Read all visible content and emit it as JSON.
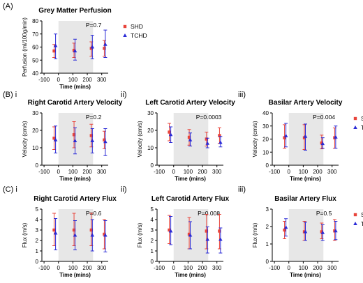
{
  "colors": {
    "shd": "#e8453c",
    "tchd": "#2a2ad6",
    "shade": "#e7e7e7",
    "axis": "#000000"
  },
  "section_labels": {
    "a": "(A)",
    "b": "(B) i",
    "b2": "ii)",
    "b3": "iii)",
    "c": "(C) i",
    "c2": "ii)",
    "c3": "iii)"
  },
  "chart_data": [
    {
      "id": "a",
      "type": "scatter",
      "title": "Grey Matter Perfusion",
      "pvalue": "P=0.7",
      "xlabel": "Time (mins)",
      "ylabel": "Perfusion (ml/100g/min)",
      "xlim": [
        -115,
        345
      ],
      "xticks": [
        -100,
        0,
        100,
        200,
        300
      ],
      "xtick_labels": [
        "-100",
        "0",
        "100",
        "200",
        "300"
      ],
      "ylim": [
        40,
        80
      ],
      "yticks": [
        40,
        50,
        60,
        70,
        80
      ],
      "ytick_labels": [
        "40",
        "50",
        "60",
        "70",
        "80"
      ],
      "shade": [
        0,
        240
      ],
      "series": [
        {
          "name": "SHD",
          "x": [
            -30,
            108,
            228,
            318
          ],
          "mean": [
            57,
            57.5,
            59,
            59
          ],
          "lo": [
            52,
            52,
            53,
            53
          ],
          "hi": [
            62,
            63,
            64,
            65
          ]
        },
        {
          "name": "TCHD",
          "x": [
            -20,
            115,
            235,
            325
          ],
          "mean": [
            61,
            57,
            60,
            62
          ],
          "lo": [
            51,
            50,
            51,
            52
          ],
          "hi": [
            70,
            66,
            69,
            73
          ]
        }
      ],
      "legend": [
        "SHD",
        "TCHD"
      ]
    },
    {
      "id": "bi",
      "type": "scatter",
      "title": "Right Carotid Artery Velocity",
      "pvalue": "P=0.2",
      "xlabel": "Time (mins)",
      "ylabel": "Velocity (cm/s)",
      "xlim": [
        -115,
        345
      ],
      "xticks": [
        -100,
        0,
        100,
        200,
        300
      ],
      "xtick_labels": [
        "-100",
        "0",
        "100",
        "200",
        "300"
      ],
      "ylim": [
        0,
        30
      ],
      "yticks": [
        0,
        10,
        20,
        30
      ],
      "ytick_labels": [
        "0",
        "10",
        "20",
        "30"
      ],
      "shade": [
        0,
        240
      ],
      "series": [
        {
          "name": "SHD",
          "x": [
            -30,
            108,
            228,
            318
          ],
          "mean": [
            15.5,
            17.5,
            17,
            14.5
          ],
          "lo": [
            9,
            10,
            10.5,
            9.5
          ],
          "hi": [
            22,
            25,
            23.5,
            19.5
          ]
        },
        {
          "name": "TCHD",
          "x": [
            -20,
            115,
            235,
            325
          ],
          "mean": [
            14.5,
            14,
            14,
            13.5
          ],
          "lo": [
            7,
            6.5,
            7,
            5.5
          ],
          "hi": [
            22.5,
            21.5,
            21,
            21
          ]
        }
      ],
      "legend": []
    },
    {
      "id": "bii",
      "type": "scatter",
      "title": "Left Carotid Artery Velocity",
      "pvalue": "P=0.0003",
      "xlabel": "Time (mins)",
      "ylabel": "Velocity (cm/s)",
      "xlim": [
        -115,
        345
      ],
      "xticks": [
        -100,
        0,
        100,
        200,
        300
      ],
      "xtick_labels": [
        "-100",
        "0",
        "100",
        "200",
        "300"
      ],
      "ylim": [
        0,
        30
      ],
      "yticks": [
        0,
        10,
        20,
        30
      ],
      "ytick_labels": [
        "0",
        "10",
        "20",
        "30"
      ],
      "shade": [
        0,
        240
      ],
      "series": [
        {
          "name": "SHD",
          "x": [
            -30,
            108,
            228,
            318
          ],
          "mean": [
            19,
            16,
            15,
            17
          ],
          "lo": [
            14,
            11.5,
            11,
            12.5
          ],
          "hi": [
            24,
            20.5,
            19,
            21.5
          ]
        },
        {
          "name": "TCHD",
          "x": [
            -20,
            115,
            235,
            325
          ],
          "mean": [
            17.5,
            14.5,
            12.5,
            13
          ],
          "lo": [
            13,
            11,
            10,
            10.5
          ],
          "hi": [
            22,
            18.5,
            15.5,
            16.5
          ]
        }
      ],
      "legend": []
    },
    {
      "id": "biii",
      "type": "scatter",
      "title": "Basilar Artery Velocity",
      "pvalue": "P=0.004",
      "xlabel": "Time (mins)",
      "ylabel": "Velocity (cm/s)",
      "xlim": [
        -115,
        345
      ],
      "xticks": [
        -100,
        0,
        100,
        200,
        300
      ],
      "xtick_labels": [
        "-100",
        "0",
        "100",
        "200",
        "300"
      ],
      "ylim": [
        0,
        40
      ],
      "yticks": [
        0,
        10,
        20,
        30,
        40
      ],
      "ytick_labels": [
        "0",
        "10",
        "20",
        "30",
        "40"
      ],
      "shade": [
        0,
        240
      ],
      "series": [
        {
          "name": "SHD",
          "x": [
            -30,
            108,
            228,
            318
          ],
          "mean": [
            21,
            21,
            17,
            21
          ],
          "lo": [
            13,
            12,
            12.5,
            13
          ],
          "hi": [
            31,
            31,
            23,
            28.5
          ]
        },
        {
          "name": "TCHD",
          "x": [
            -20,
            115,
            235,
            325
          ],
          "mean": [
            22.5,
            22,
            16.5,
            21.5
          ],
          "lo": [
            14,
            11.5,
            13,
            13
          ],
          "hi": [
            32,
            31.5,
            21,
            30
          ]
        }
      ],
      "legend": [
        "SHD",
        "TCHD"
      ]
    },
    {
      "id": "ci",
      "type": "scatter",
      "title": "Right Carotid Artery Flux",
      "pvalue": "P=0.6",
      "xlabel": "Time (mins)",
      "ylabel": "Flux (m/s)",
      "xlim": [
        -115,
        345
      ],
      "xticks": [
        -100,
        0,
        100,
        200,
        300
      ],
      "xtick_labels": [
        "-100",
        "0",
        "100",
        "200",
        "300"
      ],
      "ylim": [
        0,
        5
      ],
      "yticks": [
        0,
        1,
        2,
        3,
        4,
        5
      ],
      "ytick_labels": [
        "0",
        "1",
        "2",
        "3",
        "4",
        "5"
      ],
      "shade": [
        0,
        240
      ],
      "series": [
        {
          "name": "SHD",
          "x": [
            -30,
            108,
            228,
            318
          ],
          "mean": [
            3,
            3,
            3,
            2.6
          ],
          "lo": [
            1.5,
            1.5,
            1.5,
            1.2
          ],
          "hi": [
            4.6,
            4.6,
            4.6,
            4.0
          ]
        },
        {
          "name": "TCHD",
          "x": [
            -20,
            115,
            235,
            325
          ],
          "mean": [
            2.7,
            2.5,
            2.5,
            2.5
          ],
          "lo": [
            1.1,
            1.1,
            1.0,
            0.9
          ],
          "hi": [
            4.1,
            3.9,
            4.0,
            3.9
          ]
        }
      ],
      "legend": []
    },
    {
      "id": "cii",
      "type": "scatter",
      "title": "Left Carotid Artery Flux",
      "pvalue": "P=0.008",
      "xlabel": "Time (mins)",
      "ylabel": "Flux (m/s)",
      "xlim": [
        -115,
        345
      ],
      "xticks": [
        -100,
        0,
        100,
        200,
        300
      ],
      "xtick_labels": [
        "-100",
        "0",
        "100",
        "200",
        "300"
      ],
      "ylim": [
        0,
        5
      ],
      "yticks": [
        0,
        1,
        2,
        3,
        4,
        5
      ],
      "ytick_labels": [
        "0",
        "1",
        "2",
        "3",
        "4",
        "5"
      ],
      "shade": [
        0,
        240
      ],
      "series": [
        {
          "name": "SHD",
          "x": [
            -30,
            108,
            228,
            318
          ],
          "mean": [
            3.0,
            2.6,
            2.9,
            2.9
          ],
          "lo": [
            1.7,
            1.2,
            1.2,
            1.2
          ],
          "hi": [
            4.4,
            4.2,
            4.5,
            4.5
          ]
        },
        {
          "name": "TCHD",
          "x": [
            -20,
            115,
            235,
            325
          ],
          "mean": [
            2.9,
            2.5,
            2.1,
            2.1
          ],
          "lo": [
            1.6,
            1.2,
            0.8,
            0.8
          ],
          "hi": [
            4.3,
            3.8,
            3.3,
            3.2
          ]
        }
      ],
      "legend": []
    },
    {
      "id": "ciii",
      "type": "scatter",
      "title": "Basilar Artery Flux",
      "pvalue": "P=0.5",
      "xlabel": "Time (mins)",
      "ylabel": "Flux (m/s)",
      "xlim": [
        -115,
        345
      ],
      "xticks": [
        -100,
        0,
        100,
        200,
        300
      ],
      "xtick_labels": [
        "-100",
        "0",
        "100",
        "200",
        "300"
      ],
      "ylim": [
        0,
        3
      ],
      "yticks": [
        0,
        1,
        2,
        3
      ],
      "ytick_labels": [
        "0",
        "1",
        "2",
        "3"
      ],
      "shade": [
        0,
        240
      ],
      "series": [
        {
          "name": "SHD",
          "x": [
            -30,
            108,
            228,
            318
          ],
          "mean": [
            1.8,
            1.7,
            1.7,
            1.75
          ],
          "lo": [
            1.3,
            1.2,
            1.3,
            1.2
          ],
          "hi": [
            2.3,
            2.3,
            2.2,
            2.4
          ]
        },
        {
          "name": "TCHD",
          "x": [
            -20,
            115,
            235,
            325
          ],
          "mean": [
            1.95,
            1.7,
            1.65,
            1.75
          ],
          "lo": [
            1.45,
            1.2,
            1.2,
            1.25
          ],
          "hi": [
            2.45,
            2.25,
            2.1,
            2.3
          ]
        }
      ],
      "legend": [
        "SHD",
        "TCHD"
      ]
    }
  ]
}
